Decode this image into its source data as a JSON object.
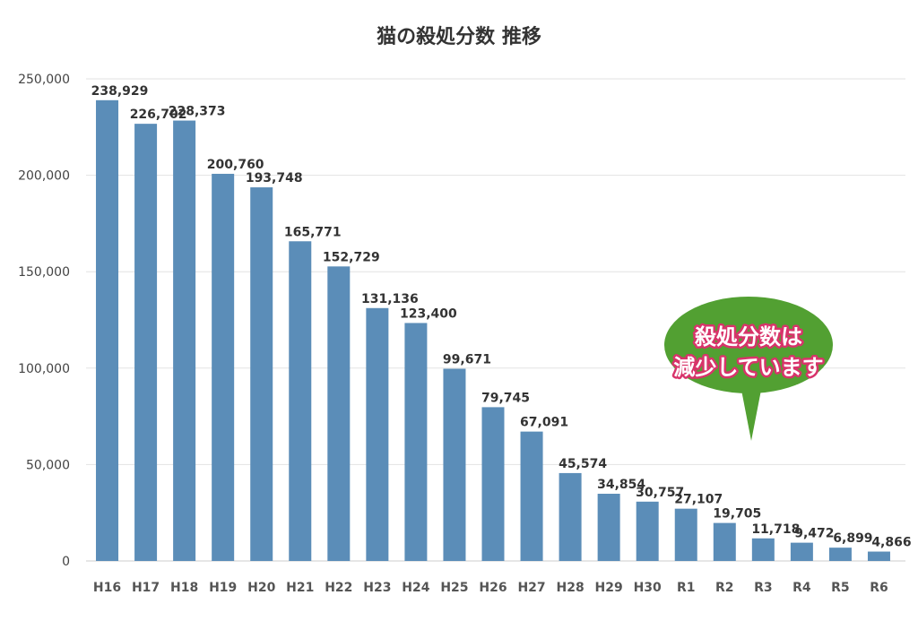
{
  "chart_data": {
    "type": "bar",
    "title": "猫の殺処分数 推移",
    "categories": [
      "H16",
      "H17",
      "H18",
      "H19",
      "H20",
      "H21",
      "H22",
      "H23",
      "H24",
      "H25",
      "H26",
      "H27",
      "H28",
      "H29",
      "H30",
      "R1",
      "R2",
      "R3",
      "R4",
      "R5",
      "R6"
    ],
    "values": [
      238929,
      226702,
      228373,
      200760,
      193748,
      165771,
      152729,
      131136,
      123400,
      99671,
      79745,
      67091,
      45574,
      34854,
      30757,
      27107,
      19705,
      11718,
      9472,
      6899,
      4866
    ],
    "data_labels": [
      "238,929",
      "226,702",
      "228,373",
      "200,760",
      "193,748",
      "165,771",
      "152,729",
      "131,136",
      "123,400",
      "99,671",
      "79,745",
      "67,091",
      "45,574",
      "34,854",
      "30,757",
      "27,107",
      "19,705",
      "11,718",
      "9,472",
      "6,899",
      "4,866"
    ],
    "ylim": [
      0,
      250000
    ],
    "yticks": [
      "0",
      "50,000",
      "100,000",
      "150,000",
      "200,000",
      "250,000"
    ],
    "grid": true,
    "bar_color": "#5b8db8",
    "annotation": {
      "line1": "殺処分数は",
      "line2": "減少しています",
      "bubble_color": "#52a032",
      "outline_color": "#d8336a"
    }
  }
}
